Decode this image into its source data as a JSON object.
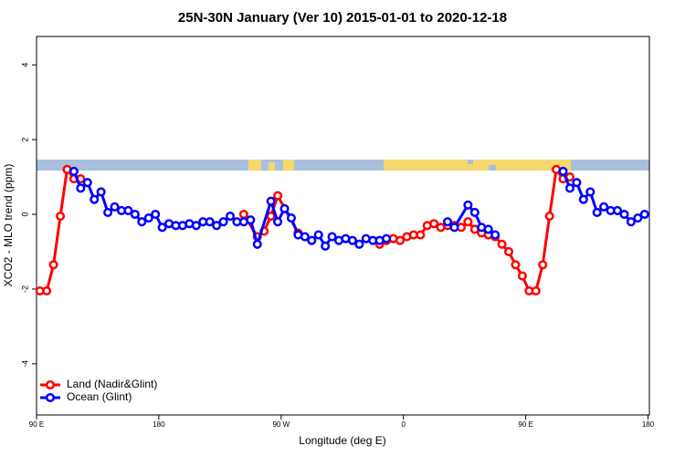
{
  "chart_data": {
    "type": "line",
    "title": "25N-30N January (Ver 10)   2015-01-01 to 2020-12-18",
    "x_label": "Longitude (deg E)",
    "y_label": "XCO2 - MLO trend (ppm)",
    "xlim": [
      90,
      541
    ],
    "ylim": [
      -5.37,
      4.76
    ],
    "xticks": [
      {
        "value": 90,
        "label": "90 E"
      },
      180,
      {
        "value": 270,
        "label": "90 W"
      },
      {
        "value": 360,
        "label": "0"
      },
      {
        "value": 450,
        "label": "90 E"
      },
      {
        "value": 540,
        "label": "180"
      }
    ],
    "yticks": [
      -4,
      -2,
      0,
      2,
      4
    ],
    "legend": "bottom-left",
    "series": [
      {
        "name": "Land (Nadir&Glint)",
        "color": "#ff0000",
        "x": [
          92.5,
          97.5,
          102.5,
          107.5,
          112.5,
          117.5,
          122.5,
          null,
          242.5,
          252.5,
          257.5,
          262.5,
          267.5,
          282.5,
          null,
          342.5,
          347.5,
          352.5,
          357.5,
          362.5,
          367.5,
          372.5,
          377.5,
          382.5,
          387.5,
          392.5,
          397.5,
          402.5,
          407.5,
          412.5,
          417.5,
          422.5,
          427.5,
          432.5,
          437.5,
          442.5,
          447.5,
          452.5,
          457.5,
          462.5,
          467.5,
          472.5,
          477.5,
          482.5
        ],
        "values": [
          -2.05,
          -2.05,
          -1.35,
          -0.05,
          1.2,
          0.95,
          0.95,
          null,
          0.0,
          -0.6,
          -0.45,
          -0.05,
          0.5,
          -0.5,
          null,
          -0.8,
          -0.7,
          -0.65,
          -0.7,
          -0.6,
          -0.55,
          -0.55,
          -0.3,
          -0.25,
          -0.35,
          -0.3,
          -0.3,
          -0.35,
          -0.2,
          -0.4,
          -0.5,
          -0.55,
          -0.6,
          -0.8,
          -1.0,
          -1.35,
          -1.65,
          -2.05,
          -2.05,
          -1.35,
          -0.05,
          1.2,
          0.95,
          1.0
        ]
      },
      {
        "name": "Ocean (Glint)",
        "color": "#0000ff",
        "x": [
          117.5,
          122.5,
          127.5,
          132.5,
          137.5,
          142.5,
          147.5,
          152.5,
          157.5,
          162.5,
          167.5,
          172.5,
          177.5,
          182.5,
          187.5,
          192.5,
          197.5,
          202.5,
          207.5,
          212.5,
          217.5,
          222.5,
          227.5,
          232.5,
          237.5,
          242.5,
          247.5,
          252.5,
          262.5,
          267.5,
          272.5,
          277.5,
          282.5,
          287.5,
          292.5,
          297.5,
          302.5,
          307.5,
          312.5,
          317.5,
          322.5,
          327.5,
          332.5,
          337.5,
          342.5,
          347.5,
          null,
          392.5,
          397.5,
          407.5,
          412.5,
          417.5,
          422.5,
          427.5,
          null,
          477.5,
          482.5,
          487.5,
          492.5,
          497.5,
          502.5,
          507.5,
          512.5,
          517.5,
          522.5,
          527.5,
          532.5,
          537.5
        ],
        "values": [
          1.15,
          0.7,
          0.85,
          0.4,
          0.6,
          0.05,
          0.2,
          0.1,
          0.1,
          0.0,
          -0.2,
          -0.1,
          0.0,
          -0.35,
          -0.25,
          -0.3,
          -0.3,
          -0.25,
          -0.3,
          -0.2,
          -0.2,
          -0.3,
          -0.2,
          -0.05,
          -0.2,
          -0.2,
          -0.15,
          -0.8,
          0.35,
          -0.2,
          0.15,
          -0.1,
          -0.55,
          -0.6,
          -0.7,
          -0.55,
          -0.85,
          -0.6,
          -0.7,
          -0.65,
          -0.7,
          -0.8,
          -0.65,
          -0.7,
          -0.7,
          -0.65,
          null,
          -0.2,
          -0.35,
          0.25,
          0.05,
          -0.35,
          -0.4,
          -0.55,
          null,
          1.15,
          0.7,
          0.85,
          0.4,
          0.6,
          0.05,
          0.2,
          0.1,
          0.1,
          0.0,
          -0.2,
          -0.1,
          0.0
        ]
      }
    ]
  }
}
